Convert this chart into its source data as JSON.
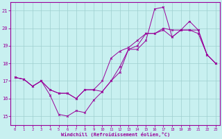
{
  "xlabel": "Windchill (Refroidissement éolien,°C)",
  "xlim": [
    -0.5,
    23.5
  ],
  "ylim": [
    14.5,
    21.5
  ],
  "yticks": [
    15,
    16,
    17,
    18,
    19,
    20,
    21
  ],
  "xticks": [
    0,
    1,
    2,
    3,
    4,
    5,
    6,
    7,
    8,
    9,
    10,
    11,
    12,
    13,
    14,
    15,
    16,
    17,
    18,
    19,
    20,
    21,
    22,
    23
  ],
  "bg_color": "#c8f0f0",
  "line_color": "#990099",
  "grid_color": "#9ecece",
  "line1_x": [
    0,
    1,
    2,
    3,
    4,
    5,
    6,
    7,
    8,
    9,
    10,
    11,
    12,
    13,
    14,
    15,
    16,
    17,
    18,
    19,
    20,
    21,
    22,
    23
  ],
  "line1_y": [
    17.2,
    17.1,
    16.7,
    17.0,
    16.2,
    15.1,
    15.0,
    15.3,
    15.2,
    15.9,
    16.4,
    17.0,
    17.5,
    18.8,
    18.8,
    19.3,
    21.1,
    21.2,
    19.5,
    19.9,
    20.4,
    19.9,
    18.5,
    18.0
  ],
  "line2_x": [
    0,
    1,
    2,
    3,
    4,
    5,
    6,
    7,
    8,
    9,
    10,
    11,
    12,
    13,
    14,
    15,
    16,
    17,
    18,
    19,
    20,
    21,
    22,
    23
  ],
  "line2_y": [
    17.2,
    17.1,
    16.7,
    17.0,
    16.5,
    16.3,
    16.3,
    16.0,
    16.5,
    16.5,
    16.4,
    17.0,
    17.8,
    18.8,
    19.0,
    19.7,
    19.7,
    19.9,
    19.5,
    19.9,
    19.9,
    19.9,
    18.5,
    18.0
  ],
  "line3_x": [
    0,
    1,
    2,
    3,
    4,
    5,
    6,
    7,
    8,
    9,
    10,
    11,
    12,
    13,
    14,
    15,
    16,
    17,
    18,
    19,
    20,
    21,
    22,
    23
  ],
  "line3_y": [
    17.2,
    17.1,
    16.7,
    17.0,
    16.5,
    16.3,
    16.3,
    16.0,
    16.5,
    16.5,
    17.0,
    18.3,
    18.7,
    18.9,
    19.3,
    19.7,
    19.7,
    20.0,
    19.9,
    19.9,
    19.9,
    19.7,
    18.5,
    18.0
  ]
}
